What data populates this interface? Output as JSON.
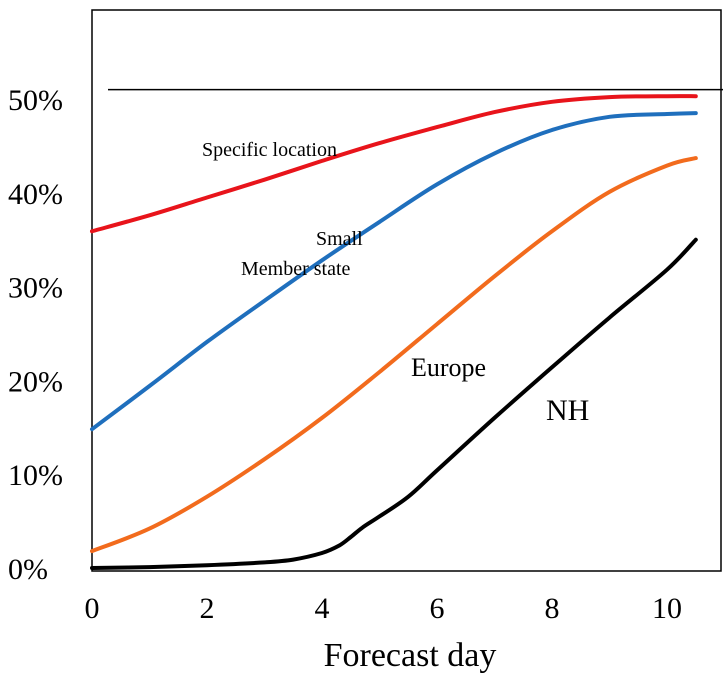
{
  "chart_data": {
    "type": "line",
    "title": "",
    "xlabel": "Forecast day",
    "ylabel": "",
    "xlim": [
      0,
      10.6
    ],
    "ylim": [
      0,
      60
    ],
    "x_ticks": [
      0,
      2,
      4,
      6,
      8,
      10
    ],
    "x_tick_labels": [
      "0",
      "2",
      "4",
      "6",
      "8",
      "10"
    ],
    "y_ticks": [
      0,
      10,
      20,
      30,
      40,
      50
    ],
    "y_tick_labels": [
      "0%",
      "10%",
      "20%",
      "30%",
      "40%",
      "50%"
    ],
    "reference_line": {
      "y": 51
    },
    "series": [
      {
        "name": "Specific location",
        "color": "#e8141b",
        "x": [
          0,
          1,
          2,
          3,
          4,
          5,
          6,
          7,
          8,
          9,
          10,
          10.5
        ],
        "y": [
          35.9,
          37.6,
          39.5,
          41.4,
          43.4,
          45.3,
          47.0,
          48.6,
          49.7,
          50.2,
          50.3,
          50.3
        ]
      },
      {
        "name": "Small Member state",
        "color": "#1f6fbd",
        "x": [
          0,
          1,
          2,
          3,
          4,
          5,
          6,
          7,
          8,
          9,
          10,
          10.5
        ],
        "y": [
          14.8,
          19.4,
          24.1,
          28.5,
          32.8,
          36.9,
          40.9,
          44.2,
          46.7,
          48.1,
          48.4,
          48.5
        ]
      },
      {
        "name": "Europe",
        "color": "#f26b1d",
        "x": [
          0,
          1,
          2,
          3,
          4,
          5,
          6,
          7,
          8,
          9,
          10,
          10.5
        ],
        "y": [
          1.8,
          4.2,
          7.6,
          11.6,
          16.0,
          20.9,
          26.0,
          31.1,
          35.9,
          40.1,
          42.9,
          43.7
        ]
      },
      {
        "name": "NH",
        "color": "#000000",
        "x": [
          0,
          1,
          2,
          3,
          3.5,
          4,
          4.3,
          4.5,
          4.7,
          5,
          5.5,
          6,
          7,
          8,
          9,
          10,
          10.5
        ],
        "y": [
          0,
          0.1,
          0.3,
          0.6,
          0.9,
          1.6,
          2.4,
          3.3,
          4.3,
          5.5,
          7.6,
          10.4,
          16.0,
          21.4,
          26.7,
          31.8,
          35.0
        ]
      }
    ],
    "annotations": [
      {
        "text": "Specific location",
        "series": "Specific location"
      },
      {
        "text": "Small",
        "series": "Small Member state"
      },
      {
        "text": "Member state",
        "series": "Small Member state"
      },
      {
        "text": "Europe",
        "series": "Europe"
      },
      {
        "text": "NH",
        "series": "NH"
      }
    ]
  }
}
